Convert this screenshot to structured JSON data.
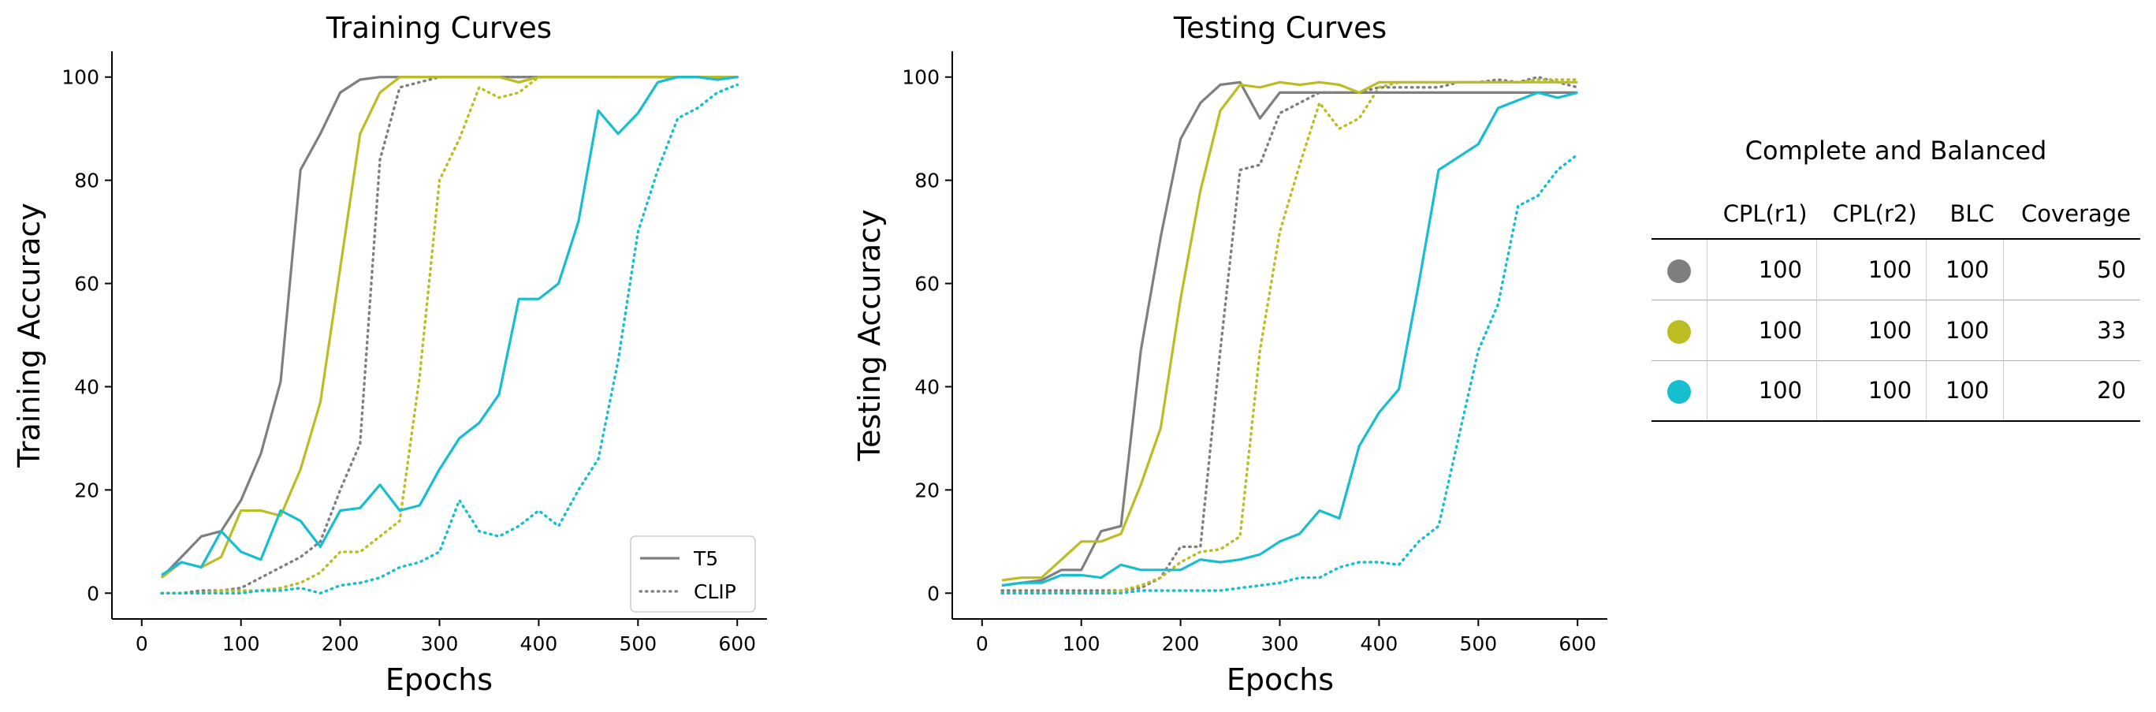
{
  "chart_data": [
    {
      "type": "line",
      "title": "Training Curves",
      "xlabel": "Epochs",
      "ylabel": "Training Accuracy",
      "xlim": [
        -30,
        630
      ],
      "ylim": [
        -5,
        105
      ],
      "xticks": [
        0,
        100,
        200,
        300,
        400,
        500,
        600
      ],
      "yticks": [
        0,
        20,
        40,
        60,
        80,
        100
      ],
      "legend": {
        "placement": "lower-right",
        "entries": [
          {
            "label": "T5",
            "style": "solid",
            "color": "#7f7f7f"
          },
          {
            "label": "CLIP",
            "style": "dotted",
            "color": "#7f7f7f"
          }
        ]
      },
      "series": [
        {
          "name": "T5 (gray)",
          "color": "#7f7f7f",
          "style": "solid",
          "x": [
            20,
            40,
            60,
            80,
            100,
            120,
            140,
            160,
            180,
            200,
            220,
            240,
            260,
            280,
            300,
            320,
            340,
            360,
            380,
            400,
            420,
            440,
            460,
            480,
            500,
            520,
            540,
            560,
            580,
            600
          ],
          "y": [
            3,
            7,
            11,
            12,
            18,
            27,
            41,
            82,
            89,
            97,
            99.5,
            100,
            100,
            100,
            100,
            100,
            100,
            100,
            100,
            100,
            100,
            100,
            100,
            100,
            100,
            100,
            100,
            100,
            100,
            100
          ]
        },
        {
          "name": "T5 (olive)",
          "color": "#bcbd22",
          "style": "solid",
          "x": [
            20,
            40,
            60,
            80,
            100,
            120,
            140,
            160,
            180,
            200,
            220,
            240,
            260,
            280,
            300,
            320,
            340,
            360,
            380,
            400,
            420,
            440,
            460,
            480,
            500,
            520,
            540,
            560,
            580,
            600
          ],
          "y": [
            3,
            6,
            5,
            7,
            16,
            16,
            15,
            24,
            37,
            63,
            89,
            97,
            100,
            100,
            100,
            100,
            100,
            100,
            99,
            100,
            100,
            100,
            100,
            100,
            100,
            100,
            100,
            100,
            100,
            100
          ]
        },
        {
          "name": "T5 (cyan)",
          "color": "#17becf",
          "style": "solid",
          "x": [
            20,
            40,
            60,
            80,
            100,
            120,
            140,
            160,
            180,
            200,
            220,
            240,
            260,
            280,
            300,
            320,
            340,
            360,
            380,
            400,
            420,
            440,
            460,
            480,
            500,
            520,
            540,
            560,
            580,
            600
          ],
          "y": [
            3.5,
            6,
            5,
            12,
            8,
            6.5,
            16,
            14,
            9,
            16,
            16.5,
            21,
            16,
            17,
            24,
            30,
            33,
            38.5,
            57,
            57,
            60,
            72,
            93.5,
            89,
            93,
            99,
            100,
            100,
            99.5,
            100
          ]
        },
        {
          "name": "CLIP (gray)",
          "color": "#7f7f7f",
          "style": "dotted",
          "x": [
            20,
            40,
            60,
            80,
            100,
            120,
            140,
            160,
            180,
            200,
            220,
            240,
            260,
            280,
            300,
            320,
            340,
            360,
            380,
            400,
            420,
            440,
            460,
            480,
            500,
            520,
            540,
            560,
            580,
            600
          ],
          "y": [
            0,
            0,
            0.5,
            0.5,
            1,
            3,
            5,
            7,
            10,
            20,
            29,
            84,
            98,
            99,
            100,
            100,
            100,
            100,
            100,
            100,
            100,
            100,
            100,
            100,
            100,
            100,
            100,
            100,
            100,
            100
          ]
        },
        {
          "name": "CLIP (olive)",
          "color": "#bcbd22",
          "style": "dotted",
          "x": [
            20,
            40,
            60,
            80,
            100,
            120,
            140,
            160,
            180,
            200,
            220,
            240,
            260,
            280,
            300,
            320,
            340,
            360,
            380,
            400,
            420,
            440,
            460,
            480,
            500,
            520,
            540,
            560,
            580,
            600
          ],
          "y": [
            0,
            0,
            0,
            0.5,
            0.5,
            0.5,
            1,
            2,
            4,
            8,
            8,
            11,
            14,
            42,
            80,
            88,
            98,
            96,
            97,
            100,
            100,
            100,
            100,
            100,
            100,
            100,
            100,
            100,
            100,
            100
          ]
        },
        {
          "name": "CLIP (cyan)",
          "color": "#17becf",
          "style": "dotted",
          "x": [
            20,
            40,
            60,
            80,
            100,
            120,
            140,
            160,
            180,
            200,
            220,
            240,
            260,
            280,
            300,
            320,
            340,
            360,
            380,
            400,
            420,
            440,
            460,
            480,
            500,
            520,
            540,
            560,
            580,
            600
          ],
          "y": [
            0,
            0,
            0,
            0,
            0,
            0.5,
            0.5,
            1,
            0,
            1.5,
            2,
            3,
            5,
            6,
            8,
            18,
            12,
            11,
            13,
            16,
            13,
            20,
            26,
            45,
            70,
            82,
            92,
            94,
            97,
            98.5
          ]
        }
      ]
    },
    {
      "type": "line",
      "title": "Testing Curves",
      "xlabel": "Epochs",
      "ylabel": "Testing Accuracy",
      "xlim": [
        -30,
        630
      ],
      "ylim": [
        -5,
        105
      ],
      "xticks": [
        0,
        100,
        200,
        300,
        400,
        500,
        600
      ],
      "yticks": [
        0,
        20,
        40,
        60,
        80,
        100
      ],
      "series": [
        {
          "name": "T5 (gray)",
          "color": "#7f7f7f",
          "style": "solid",
          "x": [
            20,
            40,
            60,
            80,
            100,
            120,
            140,
            160,
            180,
            200,
            220,
            240,
            260,
            280,
            300,
            320,
            340,
            360,
            380,
            400,
            420,
            440,
            460,
            480,
            500,
            520,
            540,
            560,
            580,
            600
          ],
          "y": [
            1.5,
            2,
            2.5,
            4.5,
            4.5,
            12,
            13,
            47,
            69,
            88,
            95,
            98.5,
            99,
            92,
            97,
            97,
            97,
            97,
            97,
            97,
            97,
            97,
            97,
            97,
            97,
            97,
            97,
            97,
            97,
            97
          ]
        },
        {
          "name": "T5 (olive)",
          "color": "#bcbd22",
          "style": "solid",
          "x": [
            20,
            40,
            60,
            80,
            100,
            120,
            140,
            160,
            180,
            200,
            220,
            240,
            260,
            280,
            300,
            320,
            340,
            360,
            380,
            400,
            420,
            440,
            460,
            480,
            500,
            520,
            540,
            560,
            580,
            600
          ],
          "y": [
            2.5,
            3,
            3,
            6.5,
            10,
            10,
            11.5,
            21,
            32,
            57,
            78,
            93.5,
            98.5,
            98,
            99,
            98.5,
            99,
            98.5,
            97,
            99,
            99,
            99,
            99,
            99,
            99,
            99,
            99,
            99,
            99,
            99
          ]
        },
        {
          "name": "T5 (cyan)",
          "color": "#17becf",
          "style": "solid",
          "x": [
            20,
            40,
            60,
            80,
            100,
            120,
            140,
            160,
            180,
            200,
            220,
            240,
            260,
            280,
            300,
            320,
            340,
            360,
            380,
            400,
            420,
            440,
            460,
            480,
            500,
            520,
            540,
            560,
            580,
            600
          ],
          "y": [
            1.5,
            2,
            2,
            3.5,
            3.5,
            3,
            5.5,
            4.5,
            4.5,
            4.5,
            6.5,
            6,
            6.5,
            7.5,
            10,
            11.5,
            16,
            14.5,
            28.5,
            35,
            39.5,
            60,
            82,
            84.5,
            87,
            94,
            95.5,
            97,
            96,
            97
          ]
        },
        {
          "name": "CLIP (gray)",
          "color": "#7f7f7f",
          "style": "dotted",
          "x": [
            20,
            40,
            60,
            80,
            100,
            120,
            140,
            160,
            180,
            200,
            220,
            240,
            260,
            280,
            300,
            320,
            340,
            360,
            380,
            400,
            420,
            440,
            460,
            480,
            500,
            520,
            540,
            560,
            580,
            600
          ],
          "y": [
            0.5,
            0.5,
            0.5,
            0.5,
            0.5,
            0.5,
            0.5,
            1,
            3,
            9,
            9,
            47,
            82,
            83,
            93,
            95,
            97,
            97,
            97,
            98,
            98,
            98,
            98,
            99,
            99,
            99.5,
            99,
            100,
            99,
            98
          ]
        },
        {
          "name": "CLIP (olive)",
          "color": "#bcbd22",
          "style": "dotted",
          "x": [
            20,
            40,
            60,
            80,
            100,
            120,
            140,
            160,
            180,
            200,
            220,
            240,
            260,
            280,
            300,
            320,
            340,
            360,
            380,
            400,
            420,
            440,
            460,
            480,
            500,
            520,
            540,
            560,
            580,
            600
          ],
          "y": [
            0,
            0,
            0,
            0,
            0,
            0,
            0.5,
            1.5,
            3,
            6,
            8,
            8.5,
            11,
            47,
            70,
            83,
            95,
            90,
            92,
            98,
            99,
            99,
            99,
            99,
            99,
            99,
            99,
            99.5,
            99.5,
            99.5
          ]
        },
        {
          "name": "CLIP (cyan)",
          "color": "#17becf",
          "style": "dotted",
          "x": [
            20,
            40,
            60,
            80,
            100,
            120,
            140,
            160,
            180,
            200,
            220,
            240,
            260,
            280,
            300,
            320,
            340,
            360,
            380,
            400,
            420,
            440,
            460,
            480,
            500,
            520,
            540,
            560,
            580,
            600
          ],
          "y": [
            0,
            0,
            0,
            0,
            0,
            0,
            0,
            0.5,
            0.5,
            0.5,
            0.5,
            0.5,
            1,
            1.5,
            2,
            3,
            3,
            5,
            6,
            6,
            5.5,
            10,
            13,
            30,
            47,
            56,
            75,
            77,
            82,
            85
          ]
        }
      ]
    }
  ],
  "table": {
    "title": "Complete and Balanced",
    "headers": [
      "CPL(r1)",
      "CPL(r2)",
      "BLC",
      "Coverage"
    ],
    "rows": [
      {
        "color": "#7f7f7f",
        "values": [
          "100",
          "100",
          "100",
          "50"
        ]
      },
      {
        "color": "#bcbd22",
        "values": [
          "100",
          "100",
          "100",
          "33"
        ]
      },
      {
        "color": "#17becf",
        "values": [
          "100",
          "100",
          "100",
          "20"
        ]
      }
    ]
  }
}
